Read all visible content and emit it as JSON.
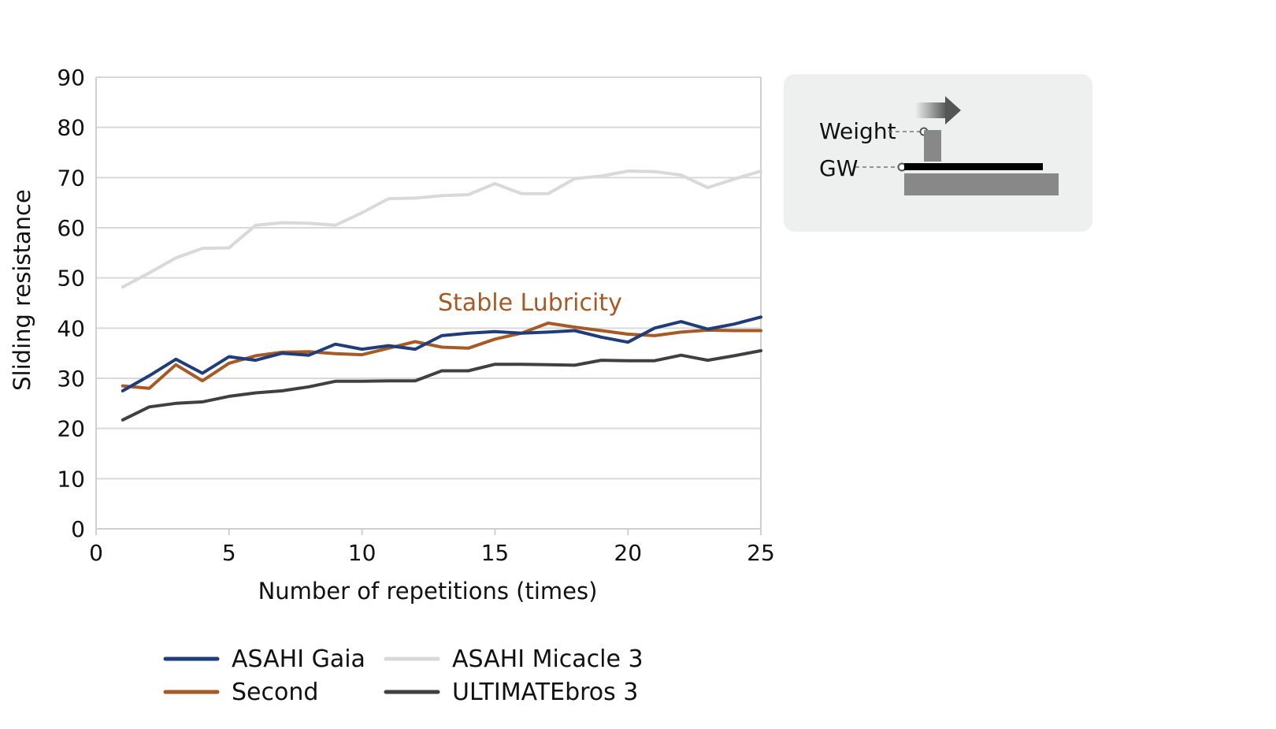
{
  "chart_data": {
    "type": "line",
    "xlabel": "Number of repetitions (times)",
    "ylabel": "Sliding resistance",
    "xlim": [
      0,
      25
    ],
    "ylim": [
      0,
      90
    ],
    "x_ticks": [
      0,
      5,
      10,
      15,
      20,
      25
    ],
    "y_ticks": [
      0,
      10,
      20,
      30,
      40,
      50,
      60,
      70,
      80,
      90
    ],
    "grid": "horizontal",
    "legend_position": "bottom",
    "annotation": {
      "text": "Stable Lubricity",
      "color": "#a65a24"
    },
    "x": [
      1,
      2,
      3,
      4,
      5,
      6,
      7,
      8,
      9,
      10,
      11,
      12,
      13,
      14,
      15,
      16,
      17,
      18,
      19,
      20,
      21,
      22,
      23,
      24,
      25
    ],
    "series": [
      {
        "name": "ASAHI Gaia",
        "color": "#1f3d7a",
        "values": [
          27.5,
          30.5,
          33.8,
          31,
          34.3,
          33.6,
          35,
          34.6,
          36.8,
          35.8,
          36.5,
          35.8,
          38.5,
          39,
          39.3,
          39,
          39.2,
          39.5,
          38.2,
          37.2,
          40,
          41.3,
          39.8,
          40.8,
          42.2
        ]
      },
      {
        "name": "ASAHI Micacle 3",
        "color": "#d9d9d9",
        "values": [
          48.2,
          51,
          54,
          55.9,
          56,
          60.5,
          61,
          60.9,
          60.5,
          63,
          65.8,
          65.9,
          66.4,
          66.6,
          68.8,
          66.8,
          66.8,
          69.8,
          70.3,
          71.3,
          71.2,
          70.5,
          68,
          69.7,
          71.3
        ]
      },
      {
        "name": "Second",
        "color": "#a65a24",
        "values": [
          28.5,
          28,
          32.7,
          29.5,
          33,
          34.5,
          35.2,
          35.3,
          34.9,
          34.7,
          36,
          37.3,
          36.2,
          36,
          37.8,
          39,
          41,
          40.2,
          39.5,
          38.8,
          38.5,
          39.2,
          39.6,
          39.5,
          39.5
        ]
      },
      {
        "name": "ULTIMATEbros 3",
        "color": "#404040",
        "values": [
          21.7,
          24.3,
          25,
          25.3,
          26.4,
          27.1,
          27.5,
          28.3,
          29.4,
          29.4,
          29.5,
          29.5,
          31.5,
          31.5,
          32.8,
          32.8,
          32.7,
          32.6,
          33.6,
          33.5,
          33.5,
          34.6,
          33.6,
          34.5,
          35.5
        ]
      }
    ],
    "legend_order": [
      "ASAHI Gaia",
      "ASAHI Micacle 3",
      "Second",
      "ULTIMATEbros 3"
    ]
  },
  "inset": {
    "weight_label": "Weight",
    "gw_label": "GW"
  }
}
